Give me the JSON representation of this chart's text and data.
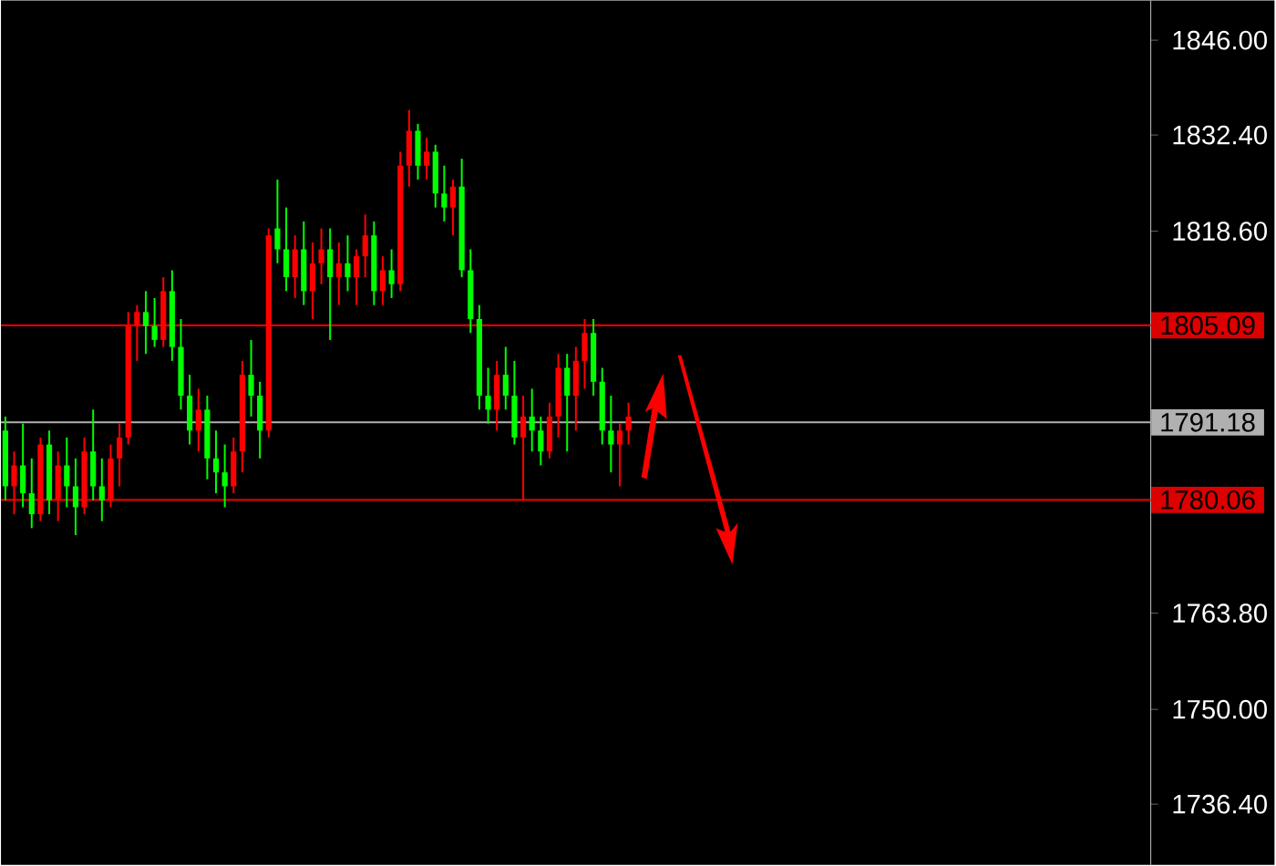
{
  "chart_data": {
    "type": "candlestick",
    "categories": [
      null,
      null,
      null,
      null,
      null,
      null,
      null,
      null,
      null,
      null,
      null,
      null,
      null,
      null,
      null,
      null,
      null,
      null,
      null,
      null,
      null,
      null,
      null,
      null,
      null,
      null,
      null,
      null,
      null,
      null,
      null,
      null,
      null,
      null,
      null,
      null,
      null,
      null,
      null,
      null,
      null,
      null,
      null,
      null,
      null,
      null,
      null,
      null,
      null,
      null,
      null,
      null,
      null,
      null,
      null,
      null,
      null,
      null,
      null,
      null,
      null,
      null,
      null,
      null,
      null,
      null,
      null,
      null,
      null,
      null,
      null,
      null,
      null,
      null,
      null,
      null,
      null,
      null,
      null,
      null,
      null,
      null,
      null,
      null,
      null,
      null,
      null,
      null,
      null,
      null,
      null,
      null,
      null,
      null,
      null,
      null,
      null,
      null,
      null,
      null,
      null,
      null,
      null,
      null,
      null,
      null,
      null,
      null,
      null,
      null,
      null,
      null,
      null,
      null,
      null,
      null,
      null,
      null,
      null,
      null,
      null,
      null,
      null,
      null,
      null,
      null,
      null,
      null,
      null,
      null,
      null
    ],
    "ohlc": [
      [
        1790,
        1792,
        1780,
        1782
      ],
      [
        1782,
        1787,
        1778,
        1785
      ],
      [
        1785,
        1791,
        1779,
        1781
      ],
      [
        1781,
        1786,
        1776,
        1778
      ],
      [
        1778,
        1789,
        1777,
        1788
      ],
      [
        1788,
        1790,
        1778,
        1780
      ],
      [
        1780,
        1787,
        1777,
        1785
      ],
      [
        1785,
        1789,
        1779,
        1782
      ],
      [
        1782,
        1786,
        1775,
        1779
      ],
      [
        1779,
        1789,
        1778,
        1787
      ],
      [
        1787,
        1793,
        1780,
        1782
      ],
      [
        1782,
        1786,
        1777,
        1780
      ],
      [
        1780,
        1788,
        1779,
        1786
      ],
      [
        1786,
        1791,
        1782,
        1789
      ],
      [
        1789,
        1807,
        1788,
        1805
      ],
      [
        1805,
        1808,
        1800,
        1807
      ],
      [
        1807,
        1810,
        1801,
        1805
      ],
      [
        1805,
        1809,
        1802,
        1803
      ],
      [
        1803,
        1812,
        1802,
        1810
      ],
      [
        1810,
        1813,
        1800,
        1802
      ],
      [
        1802,
        1806,
        1793,
        1795
      ],
      [
        1795,
        1798,
        1788,
        1790
      ],
      [
        1790,
        1796,
        1787,
        1793
      ],
      [
        1793,
        1795,
        1783,
        1786
      ],
      [
        1786,
        1790,
        1781,
        1784
      ],
      [
        1784,
        1788,
        1779,
        1782
      ],
      [
        1782,
        1789,
        1781,
        1787
      ],
      [
        1787,
        1800,
        1784,
        1798
      ],
      [
        1798,
        1803,
        1792,
        1795
      ],
      [
        1795,
        1797,
        1786,
        1790
      ],
      [
        1790,
        1819,
        1789,
        1818
      ],
      [
        1819,
        1826,
        1814,
        1816
      ],
      [
        1816,
        1822,
        1810,
        1812
      ],
      [
        1812,
        1818,
        1809,
        1816
      ],
      [
        1816,
        1820,
        1808,
        1810
      ],
      [
        1810,
        1817,
        1806,
        1814
      ],
      [
        1814,
        1819,
        1811,
        1816
      ],
      [
        1816,
        1819,
        1803,
        1812
      ],
      [
        1812,
        1817,
        1808,
        1814
      ],
      [
        1814,
        1818,
        1810,
        1812
      ],
      [
        1812,
        1816,
        1808,
        1815
      ],
      [
        1815,
        1821,
        1812,
        1818
      ],
      [
        1818,
        1820,
        1808,
        1810
      ],
      [
        1810,
        1815,
        1808,
        1813
      ],
      [
        1813,
        1816,
        1809,
        1811
      ],
      [
        1811,
        1830,
        1810,
        1828
      ],
      [
        1828,
        1836,
        1825,
        1833
      ],
      [
        1833,
        1834,
        1826,
        1828
      ],
      [
        1828,
        1832,
        1826,
        1830
      ],
      [
        1830,
        1831,
        1822,
        1824
      ],
      [
        1824,
        1828,
        1820,
        1822
      ],
      [
        1822,
        1826,
        1818,
        1825
      ],
      [
        1825,
        1829,
        1812,
        1813
      ],
      [
        1813,
        1816,
        1804,
        1806
      ],
      [
        1806,
        1808,
        1793,
        1795
      ],
      [
        1795,
        1799,
        1791,
        1793
      ],
      [
        1793,
        1800,
        1790,
        1798
      ],
      [
        1798,
        1802,
        1793,
        1795
      ],
      [
        1795,
        1800,
        1788,
        1789
      ],
      [
        1789,
        1795,
        1780,
        1792
      ],
      [
        1792,
        1796,
        1787,
        1790
      ],
      [
        1790,
        1792,
        1785,
        1787
      ],
      [
        1787,
        1794,
        1786,
        1792
      ],
      [
        1792,
        1801,
        1789,
        1799
      ],
      [
        1799,
        1801,
        1787,
        1795
      ],
      [
        1795,
        1802,
        1790,
        1800
      ],
      [
        1800,
        1806,
        1796,
        1804
      ],
      [
        1804,
        1806,
        1795,
        1797
      ],
      [
        1797,
        1799,
        1788,
        1790
      ],
      [
        1790,
        1795,
        1784,
        1788
      ],
      [
        1788,
        1791,
        1782,
        1790
      ],
      [
        1790,
        1794,
        1788,
        1792
      ],
      null,
      null,
      null,
      null,
      null,
      null,
      null,
      null,
      null,
      null,
      null,
      null,
      null,
      null,
      null,
      null,
      null,
      null,
      null,
      null,
      null,
      null,
      null,
      null,
      null,
      null,
      null,
      null,
      null,
      null,
      null,
      null,
      null,
      null,
      null,
      null,
      null,
      null,
      null,
      null,
      null,
      null,
      null,
      null,
      null,
      null,
      null,
      null,
      null,
      null,
      null,
      null,
      null,
      null,
      null,
      null,
      null,
      null,
      null
    ],
    "colors": [
      "#00ff00",
      "#ff0000",
      "#00ff00",
      "#00ff00",
      "#ff0000",
      "#00ff00",
      "#ff0000",
      "#00ff00",
      "#00ff00",
      "#ff0000",
      "#00ff00",
      "#00ff00",
      "#ff0000",
      "#ff0000",
      "#ff0000",
      "#ff0000",
      "#00ff00",
      "#00ff00",
      "#ff0000",
      "#00ff00",
      "#00ff00",
      "#00ff00",
      "#ff0000",
      "#00ff00",
      "#00ff00",
      "#00ff00",
      "#ff0000",
      "#ff0000",
      "#00ff00",
      "#00ff00",
      "#ff0000",
      "#00ff00",
      "#00ff00",
      "#ff0000",
      "#00ff00",
      "#ff0000",
      "#ff0000",
      "#00ff00",
      "#ff0000",
      "#00ff00",
      "#ff0000",
      "#ff0000",
      "#00ff00",
      "#ff0000",
      "#00ff00",
      "#ff0000",
      "#ff0000",
      "#00ff00",
      "#ff0000",
      "#00ff00",
      "#00ff00",
      "#ff0000",
      "#00ff00",
      "#00ff00",
      "#00ff00",
      "#00ff00",
      "#ff0000",
      "#00ff00",
      "#00ff00",
      "#ff0000",
      "#00ff00",
      "#00ff00",
      "#ff0000",
      "#ff0000",
      "#00ff00",
      "#ff0000",
      "#ff0000",
      "#00ff00",
      "#00ff00",
      "#00ff00",
      "#ff0000",
      "#ff0000",
      null,
      null,
      null,
      null,
      null,
      null,
      null,
      null,
      null,
      null,
      null,
      null,
      null,
      null,
      null,
      null,
      null,
      null,
      null,
      null,
      null,
      null,
      null,
      null,
      null,
      null,
      null,
      null,
      null,
      null,
      null,
      null,
      null,
      null,
      null,
      null,
      null,
      null,
      null,
      null,
      null,
      null,
      null,
      null,
      null,
      null,
      null,
      null,
      null,
      null,
      null,
      null,
      null,
      null,
      null,
      null,
      null,
      null,
      null
    ],
    "ylim": [
      1727.7,
      1851.7
    ],
    "yticks": [
      {
        "value": 1846.0,
        "label": "1846.00"
      },
      {
        "value": 1832.4,
        "label": "1832.40"
      },
      {
        "value": 1818.6,
        "label": "1818.60"
      },
      {
        "value": 1763.8,
        "label": "1763.80"
      },
      {
        "value": 1750.0,
        "label": "1750.00"
      },
      {
        "value": 1736.4,
        "label": "1736.40"
      }
    ],
    "ref_lines": [
      {
        "axis": "y",
        "value": 1805.09,
        "label": "1805.09",
        "color": "#dd0000"
      },
      {
        "axis": "y",
        "value": 1791.18,
        "label": "1791.18",
        "color": "#b0b0b0"
      },
      {
        "axis": "y",
        "value": 1780.06,
        "label": "1780.06",
        "color": "#dd0000"
      }
    ],
    "grid": false,
    "legend": false
  }
}
